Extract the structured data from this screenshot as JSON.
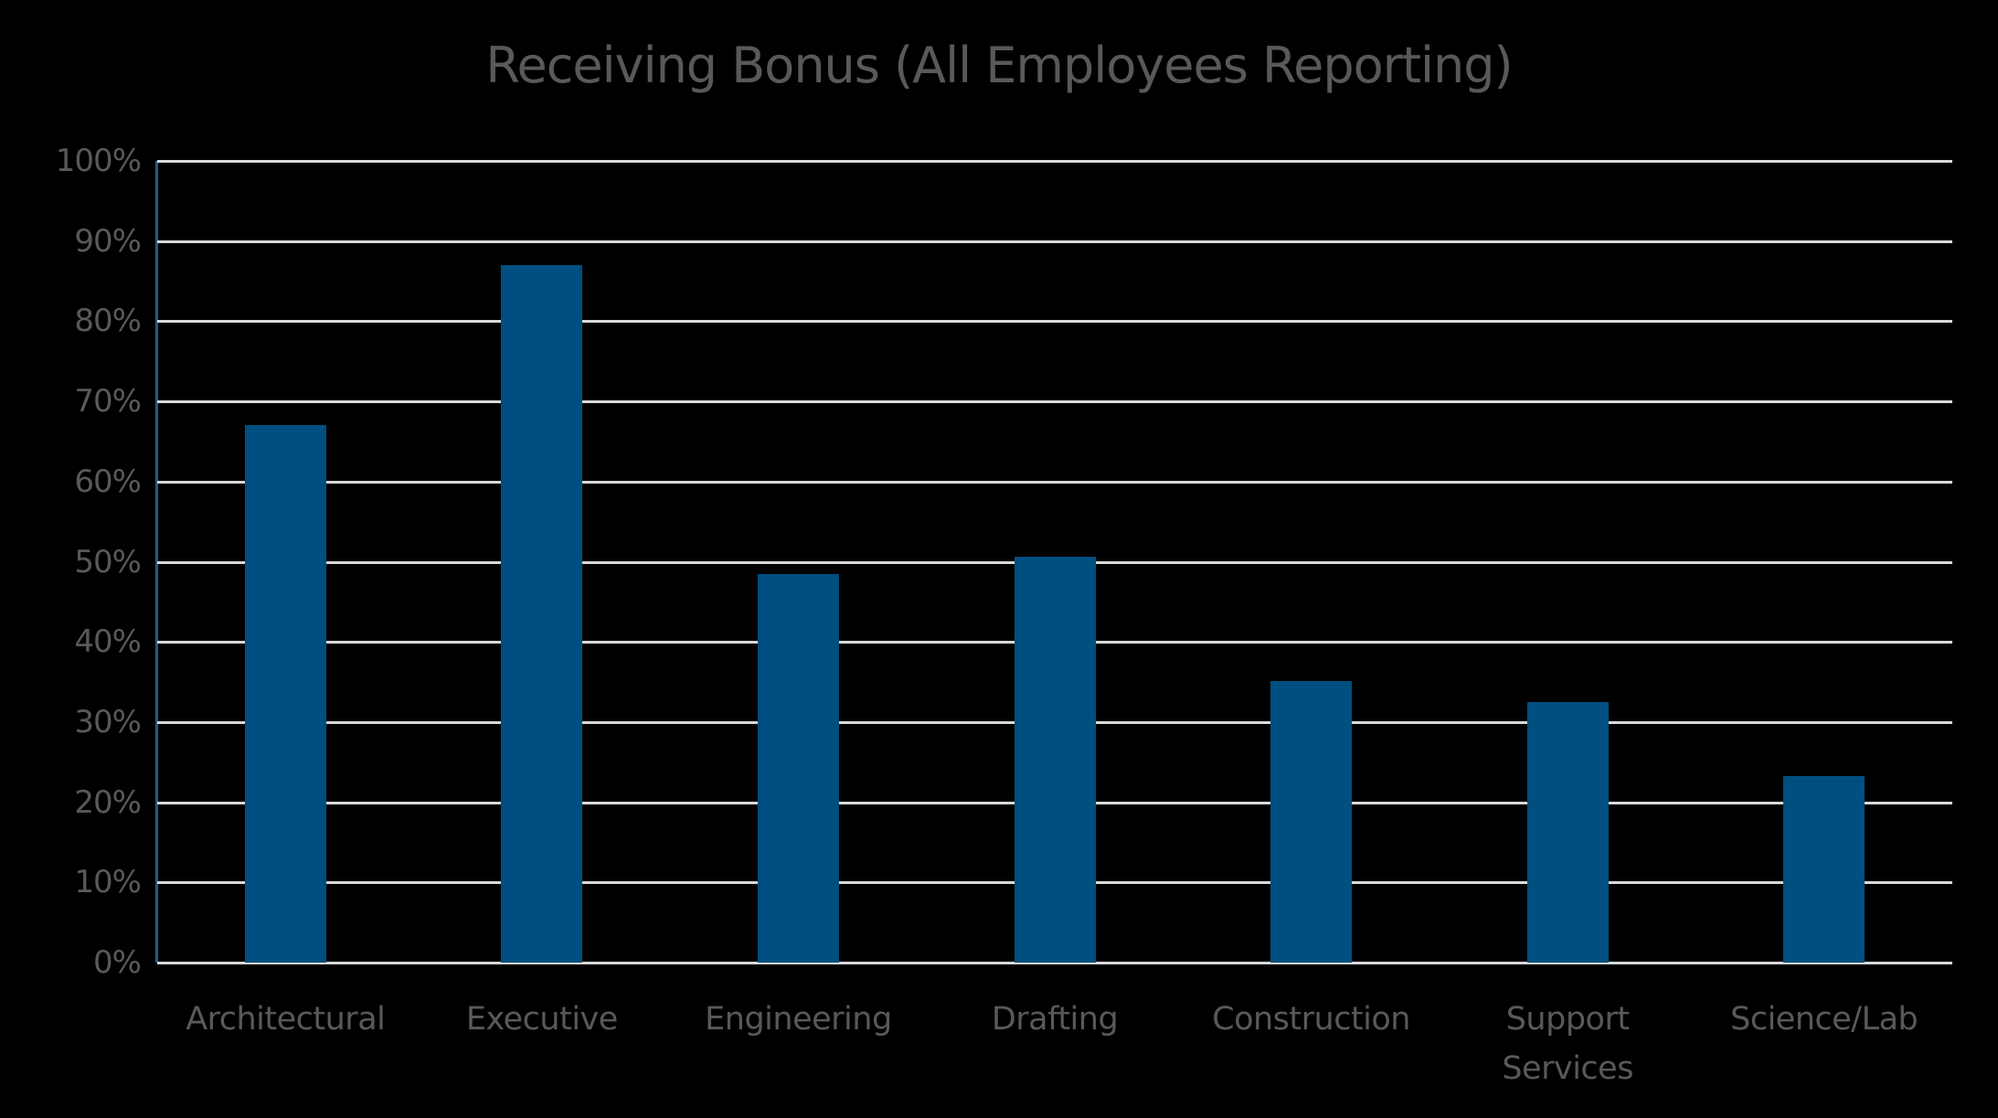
{
  "chart_data": {
    "type": "bar",
    "title": "Receiving Bonus (All Employees Reporting)",
    "xlabel": "",
    "ylabel": "",
    "ylim": [
      0,
      100
    ],
    "yticks": [
      "0%",
      "10%",
      "20%",
      "30%",
      "40%",
      "50%",
      "60%",
      "70%",
      "80%",
      "90%",
      "100%"
    ],
    "grid": true,
    "legend": null,
    "categories": [
      "Architectural",
      "Executive",
      "Engineering",
      "Drafting",
      "Construction",
      "Support Services",
      "Science/Lab"
    ],
    "category_lines": [
      [
        "Architectural"
      ],
      [
        "Executive"
      ],
      [
        "Engineering"
      ],
      [
        "Drafting"
      ],
      [
        "Construction"
      ],
      [
        "Support",
        "Services"
      ],
      [
        "Science/Lab"
      ]
    ],
    "values": [
      67,
      87,
      48.5,
      50.6,
      35.1,
      32.5,
      23.3
    ],
    "unit": "%",
    "colors": {
      "bar": "#004f80",
      "grid": "#d9d9d9",
      "axis": "#1f5d8a",
      "text": "#595959",
      "background": "#000000"
    }
  }
}
